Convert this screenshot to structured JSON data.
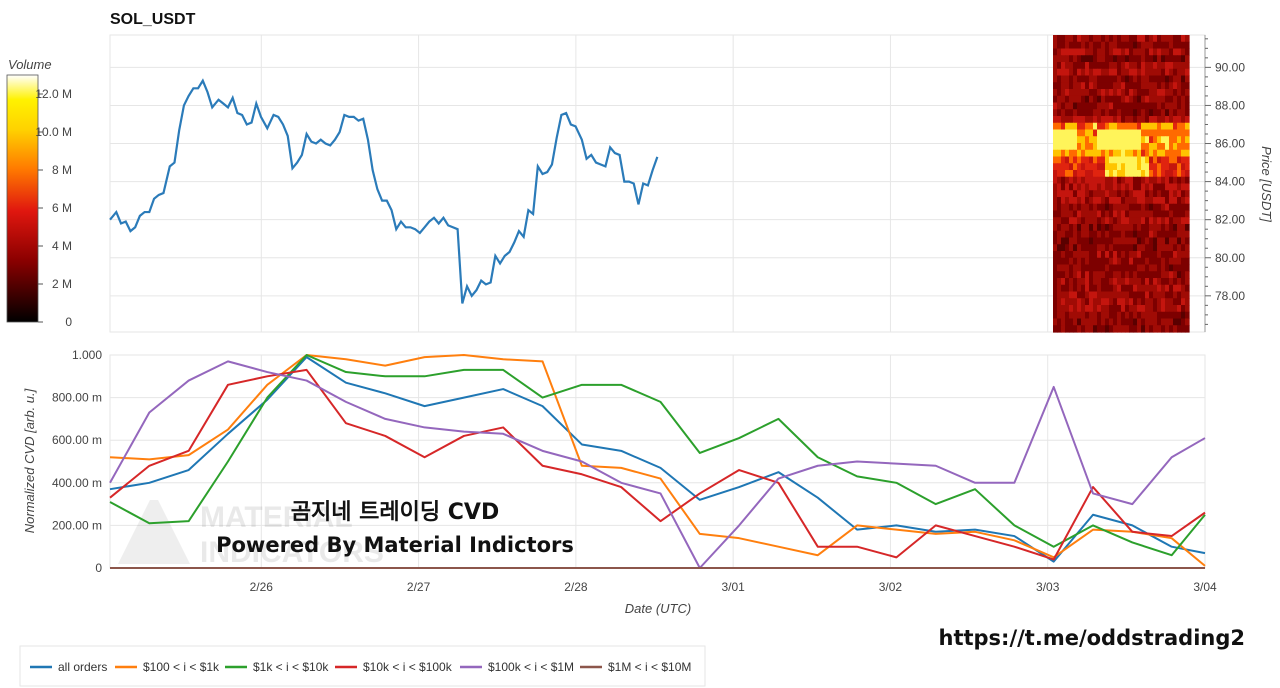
{
  "chart_data": [
    {
      "type": "line",
      "title": "SOL_USDT",
      "ylabel": "Price [USDT]",
      "ylim": [
        76.1,
        91.7
      ],
      "yticks": [
        "78.00",
        "80.00",
        "82.00",
        "84.00",
        "86.00",
        "88.00",
        "90.00"
      ],
      "ytick_values": [
        78,
        80,
        82,
        84,
        86,
        88,
        90
      ],
      "grid": true,
      "series": [
        {
          "color": "#2b7bb9",
          "x": [
            0,
            0.04,
            0.07,
            0.1,
            0.13,
            0.16,
            0.19,
            0.22,
            0.25,
            0.28,
            0.31,
            0.34,
            0.38,
            0.41,
            0.44,
            0.47,
            0.5,
            0.53,
            0.56,
            0.59,
            0.62,
            0.65,
            0.69,
            0.72,
            0.75,
            0.78,
            0.81,
            0.84,
            0.87,
            0.9,
            0.93,
            0.96,
            1.0,
            1.04,
            1.07,
            1.1,
            1.13,
            1.16,
            1.19,
            1.22,
            1.25,
            1.28,
            1.31,
            1.34,
            1.37,
            1.4,
            1.43,
            1.46,
            1.49,
            1.52,
            1.55,
            1.58,
            1.61,
            1.64,
            1.67,
            1.7,
            1.73,
            1.76,
            1.79,
            1.82,
            1.85,
            1.88,
            1.91,
            1.94,
            1.97,
            2.0,
            2.03,
            2.06,
            2.09,
            2.12,
            2.15,
            2.18,
            2.21,
            2.24,
            2.27,
            2.3,
            2.33,
            2.36,
            2.39,
            2.42,
            2.45,
            2.48,
            2.51,
            2.54,
            2.57,
            2.6,
            2.63,
            2.66,
            2.69,
            2.72,
            2.75,
            2.78,
            2.81,
            2.84,
            2.87,
            2.9,
            2.93,
            2.96,
            3.0,
            3.03,
            3.06,
            3.09,
            3.12,
            3.15,
            3.18,
            3.21,
            3.24,
            3.27,
            3.3,
            3.33,
            3.36,
            3.39,
            3.42,
            3.45,
            3.48
          ],
          "values": [
            82.0,
            82.4,
            81.8,
            81.9,
            81.4,
            81.6,
            82.2,
            82.4,
            82.4,
            83.1,
            83.3,
            83.4,
            84.8,
            85.0,
            86.7,
            88.0,
            88.5,
            88.9,
            88.9,
            89.3,
            88.7,
            87.9,
            88.3,
            88.1,
            87.9,
            88.4,
            87.6,
            87.5,
            87.0,
            87.1,
            88.1,
            87.4,
            86.8,
            87.5,
            87.4,
            87.0,
            86.4,
            84.7,
            85.0,
            85.4,
            86.5,
            86.1,
            86.0,
            86.2,
            86.0,
            85.9,
            86.2,
            86.6,
            87.5,
            87.4,
            87.4,
            87.2,
            87.3,
            86.2,
            84.6,
            83.6,
            83.0,
            83.0,
            82.5,
            81.5,
            81.9,
            81.6,
            81.6,
            81.5,
            81.3,
            81.6,
            81.9,
            82.1,
            81.8,
            82.1,
            81.7,
            81.6,
            81.5,
            77.6,
            78.5,
            78.0,
            78.3,
            78.8,
            78.6,
            78.7,
            80.1,
            79.7,
            80.1,
            80.3,
            80.8,
            81.4,
            81.1,
            82.5,
            82.3,
            84.8,
            84.4,
            84.5,
            84.9,
            86.3,
            87.5,
            87.6,
            87.0,
            86.9,
            86.2,
            85.2,
            85.4,
            85.0,
            84.9,
            84.8,
            85.8,
            85.5,
            85.4,
            84.0,
            84.0,
            83.9,
            82.8,
            83.9,
            83.8,
            84.6,
            85.3
          ]
        }
      ],
      "heatmap": {
        "colorbar_title": "Volume",
        "colorbar_ticks": [
          "0",
          "2 M",
          "4 M",
          "6 M",
          "8 M",
          "10.0 M",
          "12.0 M"
        ],
        "colorbar_values": [
          0,
          2,
          4,
          6,
          8,
          10,
          12
        ],
        "colorbar_max": 13.0
      }
    },
    {
      "type": "line",
      "xlabel": "Date (UTC)",
      "ylabel": "Normalized CVD [arb. u.]",
      "ylim": [
        0,
        1
      ],
      "yticks": [
        "0",
        "200.00 m",
        "400.00 m",
        "600.00 m",
        "800.00 m",
        "1.000"
      ],
      "ytick_values": [
        0,
        0.2,
        0.4,
        0.6,
        0.8,
        1.0
      ],
      "categories": [
        "2/26",
        "2/27",
        "2/28",
        "3/01",
        "3/02",
        "3/03",
        "3/04"
      ],
      "category_positions": [
        0.962,
        1.962,
        2.962,
        3.962,
        4.962,
        5.962,
        6.962
      ],
      "xlim": [
        0,
        6.962
      ],
      "grid": true,
      "legend_position": "bottom",
      "series": [
        {
          "name": "all orders",
          "color": "#1f77b4",
          "x": [
            0,
            0.25,
            0.5,
            0.75,
            1.0,
            1.25,
            1.5,
            1.75,
            2.0,
            2.25,
            2.5,
            2.75,
            3.0,
            3.25,
            3.5,
            3.75,
            4.0,
            4.25,
            4.5,
            4.75,
            5.0,
            5.25,
            5.5,
            5.75,
            6.0,
            6.25,
            6.5,
            6.75,
            6.962
          ],
          "values": [
            0.37,
            0.4,
            0.46,
            0.63,
            0.79,
            0.99,
            0.87,
            0.82,
            0.76,
            0.8,
            0.84,
            0.76,
            0.58,
            0.55,
            0.47,
            0.32,
            0.38,
            0.45,
            0.33,
            0.18,
            0.2,
            0.17,
            0.18,
            0.15,
            0.03,
            0.25,
            0.2,
            0.1,
            0.07
          ]
        },
        {
          "name": "$100 < i < $1k",
          "color": "#ff7f0e",
          "x": [
            0,
            0.25,
            0.5,
            0.75,
            1.0,
            1.25,
            1.5,
            1.75,
            2.0,
            2.25,
            2.5,
            2.75,
            3.0,
            3.25,
            3.5,
            3.75,
            4.0,
            4.25,
            4.5,
            4.75,
            5.0,
            5.25,
            5.5,
            5.75,
            6.0,
            6.25,
            6.5,
            6.75,
            6.962
          ],
          "values": [
            0.52,
            0.51,
            0.53,
            0.65,
            0.86,
            1.0,
            0.98,
            0.95,
            0.99,
            1.0,
            0.98,
            0.97,
            0.48,
            0.47,
            0.42,
            0.16,
            0.14,
            0.1,
            0.06,
            0.2,
            0.18,
            0.16,
            0.17,
            0.13,
            0.05,
            0.18,
            0.17,
            0.14,
            0.01
          ]
        },
        {
          "name": "$1k < i < $10k",
          "color": "#2ca02c",
          "x": [
            0,
            0.25,
            0.5,
            0.75,
            1.0,
            1.25,
            1.5,
            1.75,
            2.0,
            2.25,
            2.5,
            2.75,
            3.0,
            3.25,
            3.5,
            3.75,
            4.0,
            4.25,
            4.5,
            4.75,
            5.0,
            5.25,
            5.5,
            5.75,
            6.0,
            6.25,
            6.5,
            6.75,
            6.962
          ],
          "values": [
            0.31,
            0.21,
            0.22,
            0.5,
            0.8,
            1.0,
            0.92,
            0.9,
            0.9,
            0.93,
            0.93,
            0.8,
            0.86,
            0.86,
            0.78,
            0.54,
            0.61,
            0.7,
            0.52,
            0.43,
            0.4,
            0.3,
            0.37,
            0.2,
            0.1,
            0.2,
            0.12,
            0.06,
            0.25
          ]
        },
        {
          "name": "$10k < i < $100k",
          "color": "#d62728",
          "x": [
            0,
            0.25,
            0.5,
            0.75,
            1.0,
            1.25,
            1.5,
            1.75,
            2.0,
            2.25,
            2.5,
            2.75,
            3.0,
            3.25,
            3.5,
            3.75,
            4.0,
            4.25,
            4.5,
            4.75,
            5.0,
            5.25,
            5.5,
            5.75,
            6.0,
            6.25,
            6.5,
            6.75,
            6.962
          ],
          "values": [
            0.33,
            0.48,
            0.55,
            0.86,
            0.9,
            0.93,
            0.68,
            0.62,
            0.52,
            0.62,
            0.66,
            0.48,
            0.44,
            0.38,
            0.22,
            0.35,
            0.46,
            0.4,
            0.1,
            0.1,
            0.05,
            0.2,
            0.15,
            0.1,
            0.04,
            0.38,
            0.17,
            0.15,
            0.26
          ]
        },
        {
          "name": "$100k < i < $1M",
          "color": "#9467bd",
          "x": [
            0,
            0.25,
            0.5,
            0.75,
            1.0,
            1.25,
            1.5,
            1.75,
            2.0,
            2.25,
            2.5,
            2.75,
            3.0,
            3.25,
            3.5,
            3.75,
            4.0,
            4.25,
            4.5,
            4.75,
            5.0,
            5.25,
            5.5,
            5.75,
            6.0,
            6.25,
            6.5,
            6.75,
            6.962
          ],
          "values": [
            0.4,
            0.73,
            0.88,
            0.97,
            0.92,
            0.88,
            0.78,
            0.7,
            0.66,
            0.64,
            0.63,
            0.55,
            0.5,
            0.4,
            0.35,
            0.0,
            0.2,
            0.42,
            0.48,
            0.5,
            0.49,
            0.48,
            0.4,
            0.4,
            0.85,
            0.35,
            0.3,
            0.52,
            0.61
          ]
        },
        {
          "name": "$1M < i < $10M",
          "color": "#8c564b",
          "x": [
            0,
            6.962
          ],
          "values": [
            0.0,
            0.0
          ]
        }
      ]
    }
  ],
  "overlay": {
    "line1": "곰지네 트레이딩 CVD",
    "line2": "Powered By Material Indictors",
    "link": "https://t.me/oddstrading2",
    "watermark": "MATERIAL INDICATORS"
  },
  "colors": {
    "grid": "#e6e6e6",
    "axis": "#999999"
  }
}
